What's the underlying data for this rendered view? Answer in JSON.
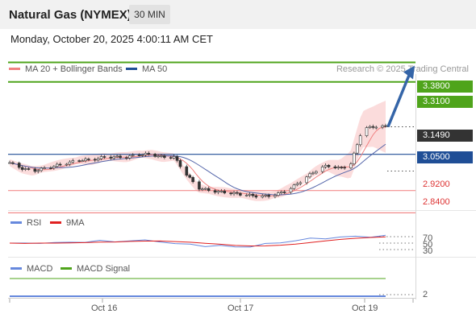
{
  "header": {
    "title": "Natural Gas (NYMEX)",
    "timeframe": "30 MIN",
    "datetime": "Monday, October 20, 2025 4:00:11 AM CET"
  },
  "legend": {
    "ma20_bb": "MA 20 + Bollinger Bands",
    "ma50": "MA 50",
    "copyright": "Research © 2025 Trading Central"
  },
  "colors": {
    "resistance": "#4fa41b",
    "pivot": "#1f4e96",
    "support": "#f28b8b",
    "price_tag": "#333333",
    "ma20": "#f08080",
    "ma50": "#5566aa",
    "bb_fill": "#fbd8d8",
    "rsi": "#6688dd",
    "rsi_ma": "#e02020",
    "macd": "#6688dd",
    "macd_signal": "#4fa41b",
    "arrow": "#3565a8"
  },
  "chart_data": {
    "type": "candlestick",
    "instrument": "Natural Gas (NYMEX)",
    "timeframe": "30 MIN",
    "x_tick_labels": [
      "Oct 16",
      "Oct 17",
      "Oct 19"
    ],
    "price_levels": {
      "resistance_2": "3.3800",
      "resistance_1": "3.3100",
      "last_price": "3.1490",
      "pivot": "3.0500",
      "support_1": "2.9200",
      "support_2": "2.8400"
    },
    "price_path": [
      3.02,
      3.0,
      2.99,
      3.0,
      3.01,
      3.02,
      3.03,
      3.03,
      3.04,
      3.04,
      3.04,
      3.05,
      3.05,
      3.04,
      3.04,
      2.98,
      2.93,
      2.92,
      2.915,
      2.91,
      2.905,
      2.9,
      2.9,
      2.91,
      2.93,
      2.96,
      2.99,
      3.01,
      3.0,
      3.01,
      3.14,
      3.15,
      3.149
    ],
    "projection": {
      "from": 3.149,
      "to": 3.38
    },
    "rsi": {
      "name": "RSI",
      "ma_name": "9MA",
      "tick_labels": [
        "70",
        "50",
        "30"
      ],
      "values": [
        50,
        48,
        52,
        50,
        52,
        55,
        56,
        55,
        58,
        57,
        56,
        48,
        45,
        42,
        41,
        38,
        40,
        46,
        52,
        58,
        63,
        66,
        68,
        70,
        71,
        72
      ]
    },
    "macd": {
      "name": "MACD",
      "signal_name": "MACD Signal",
      "tick_labels": [
        "2"
      ]
    }
  }
}
